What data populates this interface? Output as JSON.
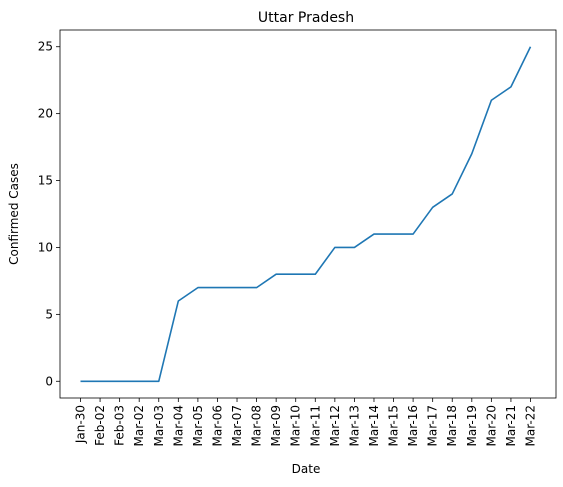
{
  "chart_data": {
    "type": "line",
    "title": "Uttar Pradesh",
    "xlabel": "Date",
    "ylabel": "Confirmed Cases",
    "categories": [
      "Jan-30",
      "Feb-02",
      "Feb-03",
      "Mar-02",
      "Mar-03",
      "Mar-04",
      "Mar-05",
      "Mar-06",
      "Mar-07",
      "Mar-08",
      "Mar-09",
      "Mar-10",
      "Mar-11",
      "Mar-12",
      "Mar-13",
      "Mar-14",
      "Mar-15",
      "Mar-16",
      "Mar-17",
      "Mar-18",
      "Mar-19",
      "Mar-20",
      "Mar-21",
      "Mar-22"
    ],
    "values": [
      0,
      0,
      0,
      0,
      0,
      6,
      7,
      7,
      7,
      7,
      8,
      8,
      8,
      10,
      10,
      11,
      11,
      11,
      13,
      14,
      17,
      21,
      22,
      25
    ],
    "yticks": [
      0,
      5,
      10,
      15,
      20,
      25
    ],
    "ylim": [
      -1.25,
      26.25
    ],
    "grid": false,
    "line_color": "#1f77b4"
  }
}
